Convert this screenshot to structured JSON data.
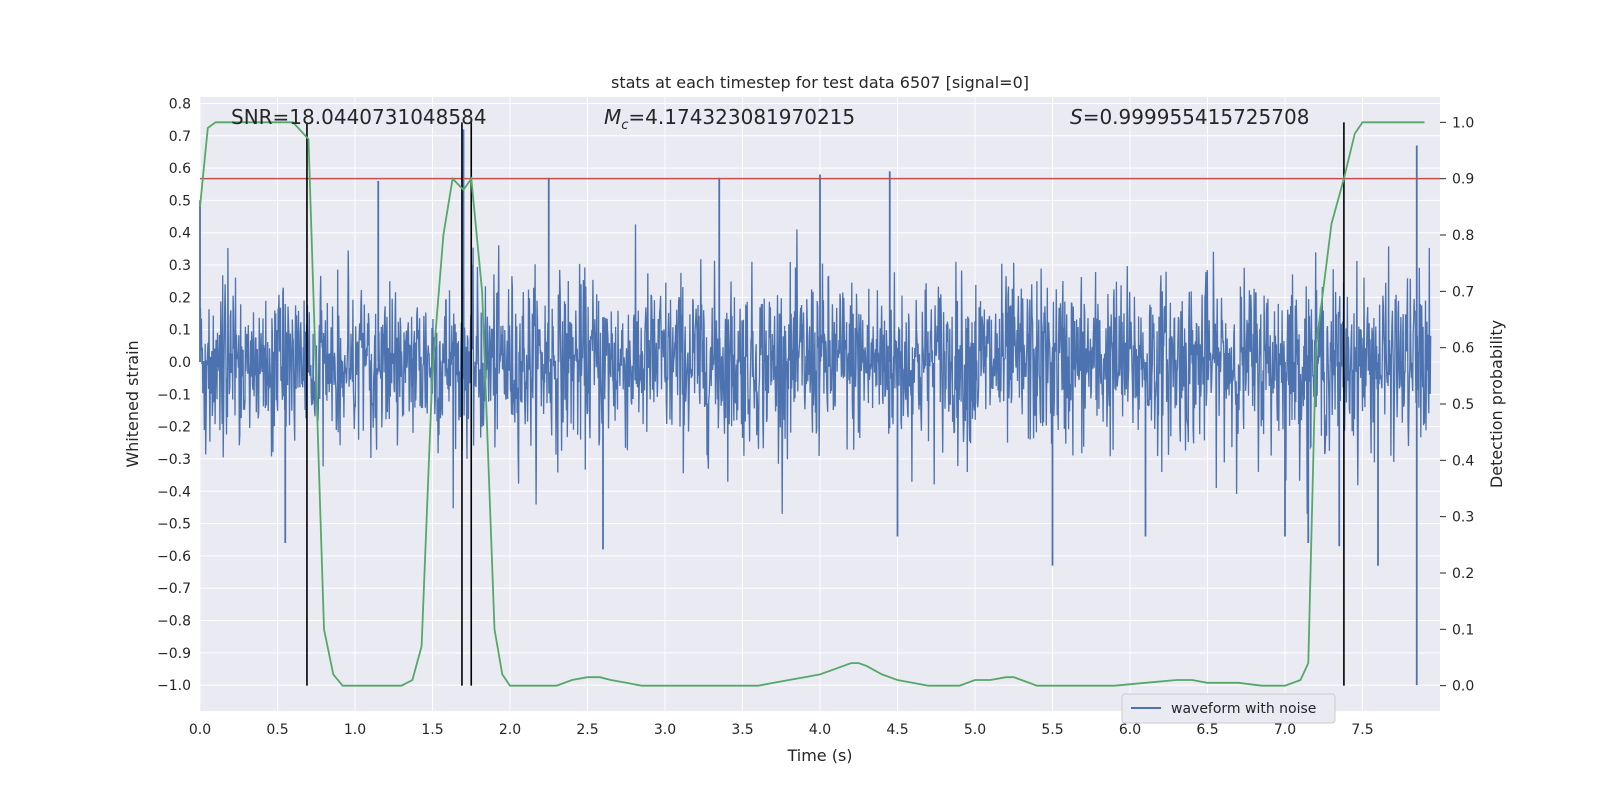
{
  "chart_data": {
    "type": "line",
    "title": "stats at each timestep for test data 6507 [signal=0]",
    "xlabel": "Time (s)",
    "ylabel": "Whitened strain",
    "ylabel_right": "Detection probability",
    "xlim": [
      0.0,
      8.0
    ],
    "ylim": [
      -1.08,
      0.82
    ],
    "ylim_right": [
      -0.045,
      1.045
    ],
    "x_ticks": [
      "0.0",
      "0.5",
      "1.0",
      "1.5",
      "2.0",
      "2.5",
      "3.0",
      "3.5",
      "4.0",
      "4.5",
      "5.0",
      "5.5",
      "6.0",
      "6.5",
      "7.0",
      "7.5"
    ],
    "x_tick_values": [
      0.0,
      0.5,
      1.0,
      1.5,
      2.0,
      2.5,
      3.0,
      3.5,
      4.0,
      4.5,
      5.0,
      5.5,
      6.0,
      6.5,
      7.0,
      7.5
    ],
    "y_ticks": [
      "0.8",
      "0.7",
      "0.6",
      "0.5",
      "0.4",
      "0.3",
      "0.2",
      "0.1",
      "0.0",
      "−0.1",
      "−0.2",
      "−0.3",
      "−0.4",
      "−0.5",
      "−0.6",
      "−0.7",
      "−0.8",
      "−0.9",
      "−1.0"
    ],
    "y_tick_values": [
      0.8,
      0.7,
      0.6,
      0.5,
      0.4,
      0.3,
      0.2,
      0.1,
      0.0,
      -0.1,
      -0.2,
      -0.3,
      -0.4,
      -0.5,
      -0.6,
      -0.7,
      -0.8,
      -0.9,
      -1.0
    ],
    "y_ticks_right": [
      "1.0",
      "0.9",
      "0.8",
      "0.7",
      "0.6",
      "0.5",
      "0.4",
      "0.3",
      "0.2",
      "0.1",
      "0.0"
    ],
    "y_tick_values_right": [
      1.0,
      0.9,
      0.8,
      0.7,
      0.6,
      0.5,
      0.4,
      0.3,
      0.2,
      0.1,
      0.0
    ],
    "annotations": {
      "snr_label": "SNR=18.0440731048584",
      "mc_symbol": "M",
      "mc_subscript": "c",
      "mc_value": "=4.174323081970215",
      "s_symbol": "S",
      "s_value": "=0.999955415725708"
    },
    "threshold_right": 0.9,
    "vertical_lines_x": [
      0.69,
      1.69,
      1.75,
      7.38
    ],
    "series": [
      {
        "name": "waveform with noise",
        "color": "#4c72b0",
        "style": "dense noise, core approx ±0.25 with spikes up to ~0.6 and down to ~−1.0 near t=7.85",
        "envelope_top": [
          [
            0.0,
            0.45
          ],
          [
            0.5,
            0.4
          ],
          [
            1.0,
            0.38
          ],
          [
            1.5,
            0.42
          ],
          [
            2.0,
            0.4
          ],
          [
            2.5,
            0.45
          ],
          [
            3.0,
            0.42
          ],
          [
            3.5,
            0.45
          ],
          [
            4.0,
            0.47
          ],
          [
            4.5,
            0.43
          ],
          [
            5.0,
            0.44
          ],
          [
            5.5,
            0.42
          ],
          [
            6.0,
            0.43
          ],
          [
            6.5,
            0.45
          ],
          [
            7.0,
            0.42
          ],
          [
            7.5,
            0.45
          ],
          [
            7.9,
            0.5
          ]
        ],
        "spikes": [
          [
            0.0,
            0.5
          ],
          [
            0.55,
            -0.56
          ],
          [
            1.15,
            0.56
          ],
          [
            1.7,
            0.72
          ],
          [
            2.25,
            0.57
          ],
          [
            2.6,
            -0.58
          ],
          [
            3.35,
            0.57
          ],
          [
            4.0,
            0.58
          ],
          [
            4.45,
            0.59
          ],
          [
            4.5,
            -0.54
          ],
          [
            5.5,
            -0.63
          ],
          [
            6.1,
            -0.54
          ],
          [
            7.0,
            -0.54
          ],
          [
            7.15,
            -0.56
          ],
          [
            7.35,
            -0.57
          ],
          [
            7.6,
            -0.63
          ],
          [
            7.85,
            0.67
          ],
          [
            7.85,
            -1.0
          ]
        ]
      },
      {
        "name": "",
        "color": "#55a868",
        "axis": "right",
        "x": [
          0.0,
          0.05,
          0.1,
          0.2,
          0.3,
          0.4,
          0.5,
          0.6,
          0.7,
          0.8,
          0.86,
          0.92,
          1.0,
          1.1,
          1.2,
          1.3,
          1.37,
          1.43,
          1.5,
          1.57,
          1.63,
          1.7,
          1.75,
          1.82,
          1.9,
          1.95,
          2.0,
          2.05,
          2.1,
          2.2,
          2.3,
          2.4,
          2.5,
          2.58,
          2.65,
          2.75,
          2.85,
          3.0,
          3.2,
          3.4,
          3.6,
          3.8,
          3.9,
          4.0,
          4.1,
          4.2,
          4.25,
          4.3,
          4.4,
          4.5,
          4.7,
          4.9,
          5.0,
          5.1,
          5.2,
          5.25,
          5.3,
          5.4,
          5.5,
          5.7,
          5.9,
          6.1,
          6.3,
          6.4,
          6.5,
          6.7,
          6.85,
          7.0,
          7.1,
          7.15,
          7.2,
          7.3,
          7.38,
          7.45,
          7.5,
          7.6,
          7.7,
          7.9
        ],
        "y": [
          0.85,
          0.99,
          1.0,
          1.0,
          1.0,
          1.0,
          1.0,
          1.0,
          0.97,
          0.1,
          0.02,
          0.0,
          0.0,
          0.0,
          0.0,
          0.0,
          0.01,
          0.07,
          0.56,
          0.8,
          0.9,
          0.88,
          0.9,
          0.7,
          0.1,
          0.02,
          0.0,
          0.0,
          0.0,
          0.0,
          0.0,
          0.01,
          0.015,
          0.015,
          0.01,
          0.005,
          0.0,
          0.0,
          0.0,
          0.0,
          0.0,
          0.01,
          0.015,
          0.02,
          0.03,
          0.04,
          0.04,
          0.035,
          0.02,
          0.01,
          0.0,
          0.0,
          0.01,
          0.01,
          0.015,
          0.015,
          0.01,
          0.0,
          0.0,
          0.0,
          0.0,
          0.005,
          0.01,
          0.01,
          0.005,
          0.005,
          0.0,
          0.0,
          0.01,
          0.04,
          0.6,
          0.82,
          0.9,
          0.98,
          1.0,
          1.0,
          1.0,
          1.0
        ]
      },
      {
        "name": "",
        "color": "#c44e52",
        "axis": "right",
        "x": [
          0.0,
          8.0
        ],
        "y": [
          0.9,
          0.9
        ]
      }
    ],
    "legend": {
      "placement": "bottom-right",
      "entries": [
        "waveform with noise"
      ]
    },
    "grid": true,
    "colors": {
      "axes_bg": "#eaeaf2",
      "grid": "#ffffff",
      "noise": "#4c72b0",
      "prob": "#55a868",
      "threshold": "#c44e52",
      "vlines": "#000000"
    }
  }
}
